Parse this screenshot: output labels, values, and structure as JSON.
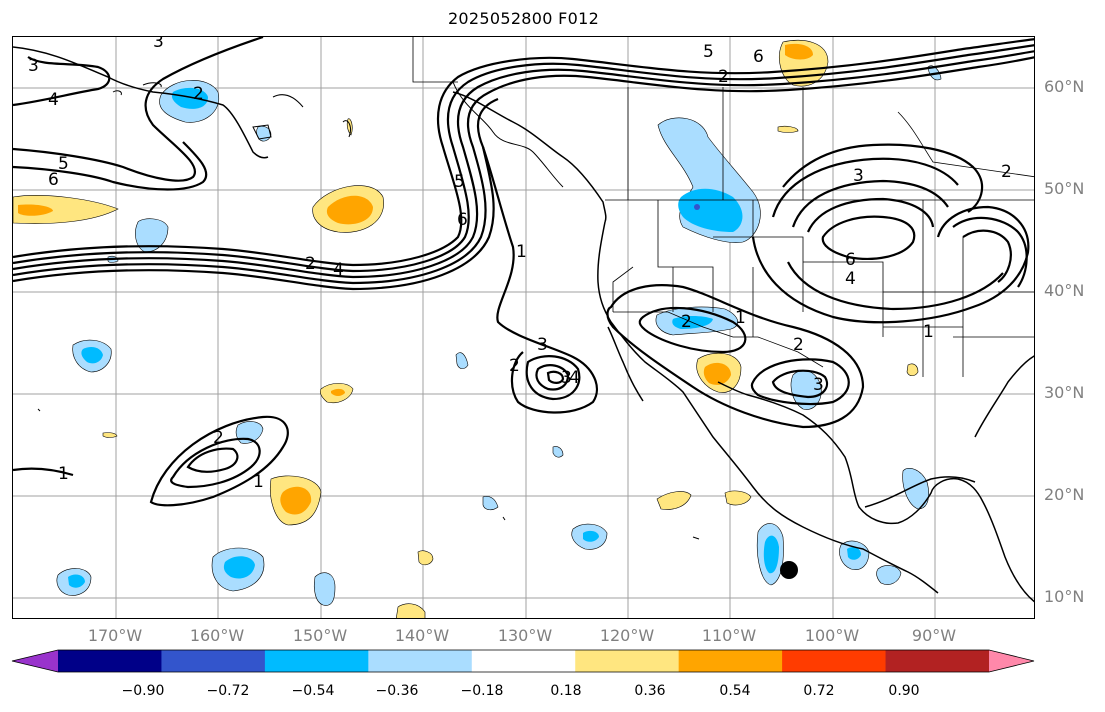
{
  "title": "2025052800 F012",
  "lat_labels": [
    "60°N",
    "50°N",
    "40°N",
    "30°N",
    "20°N",
    "10°N"
  ],
  "lon_labels": [
    "170°W",
    "160°W",
    "150°W",
    "140°W",
    "130°W",
    "120°W",
    "110°W",
    "100°W",
    "90°W"
  ],
  "colorbar": {
    "tick_labels": [
      "−0.90",
      "−0.72",
      "−0.54",
      "−0.36",
      "−0.18",
      "0.18",
      "0.36",
      "0.54",
      "0.72",
      "0.90"
    ],
    "colors": [
      "#9933cc",
      "#000088",
      "#3355cc",
      "#00bbff",
      "#aaddff",
      "#ffffff",
      "#ffe680",
      "#ffa500",
      "#ff3c00",
      "#b22222",
      "#ff88aa"
    ]
  },
  "contour_labels": [
    "3",
    "4",
    "5",
    "6",
    "1",
    "2",
    "5",
    "6",
    "2",
    "4",
    "5",
    "6",
    "2",
    "3",
    "1",
    "2",
    "3",
    "3",
    "4",
    "2",
    "1",
    "2",
    "3",
    "3",
    "2",
    "6",
    "4",
    "1",
    "1",
    "2"
  ],
  "colors": {
    "positive_fill": "#ffe680",
    "positive_core": "#ffa500",
    "negative_fill": "#aaddff",
    "negative_core": "#00bbff",
    "negative_center": "#3355cc"
  }
}
